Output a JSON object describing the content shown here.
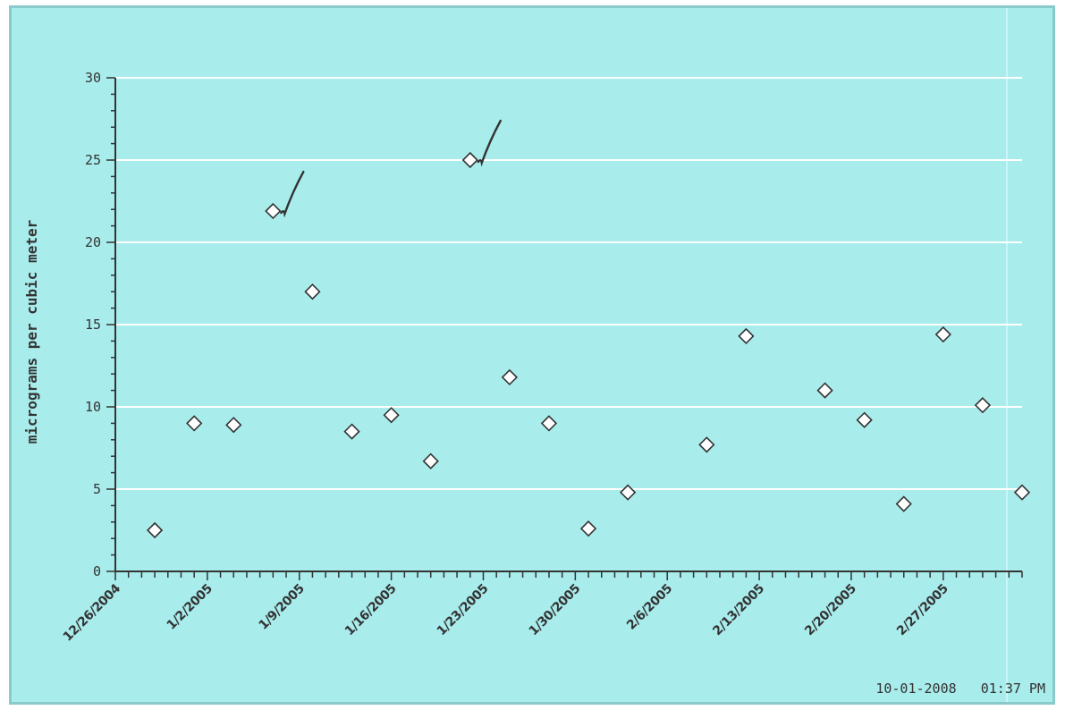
{
  "chart_data": {
    "type": "scatter",
    "title": "",
    "xlabel": "",
    "ylabel": "micrograms per cubic meter",
    "ylim": [
      0,
      30
    ],
    "yticks": [
      0,
      5,
      10,
      15,
      20,
      25,
      30
    ],
    "xlim": [
      "2004-12-26",
      "2005-03-05"
    ],
    "xtick_labels": [
      "12/26/2004",
      "1/2/2005",
      "1/9/2005",
      "1/16/2005",
      "1/23/2005",
      "1/30/2005",
      "2/6/2005",
      "2/13/2005",
      "2/20/2005",
      "2/27/2005"
    ],
    "grid": true,
    "marker": "diamond",
    "points": [
      {
        "x": "2004-12-29",
        "y": 2.5
      },
      {
        "x": "2005-01-01",
        "y": 9.0
      },
      {
        "x": "2005-01-04",
        "y": 8.9
      },
      {
        "x": "2005-01-07",
        "y": 21.9,
        "checked": true
      },
      {
        "x": "2005-01-10",
        "y": 17.0
      },
      {
        "x": "2005-01-13",
        "y": 8.5
      },
      {
        "x": "2005-01-16",
        "y": 9.5
      },
      {
        "x": "2005-01-19",
        "y": 6.7
      },
      {
        "x": "2005-01-22",
        "y": 25.0,
        "checked": true
      },
      {
        "x": "2005-01-25",
        "y": 11.8
      },
      {
        "x": "2005-01-28",
        "y": 9.0
      },
      {
        "x": "2005-01-31",
        "y": 2.6
      },
      {
        "x": "2005-02-03",
        "y": 4.8
      },
      {
        "x": "2005-02-09",
        "y": 7.7
      },
      {
        "x": "2005-02-12",
        "y": 14.3
      },
      {
        "x": "2005-02-18",
        "y": 11.0
      },
      {
        "x": "2005-02-21",
        "y": 9.2
      },
      {
        "x": "2005-02-24",
        "y": 4.1
      },
      {
        "x": "2005-02-27",
        "y": 14.4
      },
      {
        "x": "2005-03-02",
        "y": 10.1
      },
      {
        "x": "2005-03-05",
        "y": 4.8
      }
    ],
    "colors": {
      "background": "#a9ecec",
      "grid": "#ffffff",
      "axis": "#333333",
      "marker": "#ffffff",
      "marker_stroke": "#333333",
      "check": "#333333"
    }
  },
  "footer": {
    "timestamp": "10-01-2008   01:37 PM"
  }
}
